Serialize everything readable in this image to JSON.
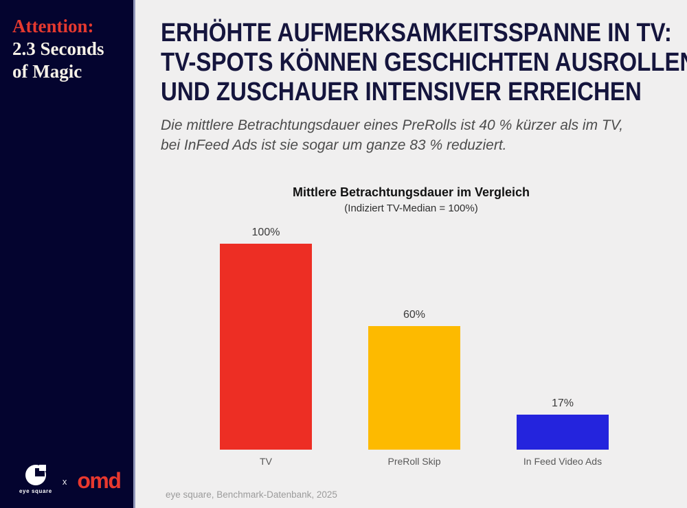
{
  "sidebar": {
    "tagline_accent": "Attention:",
    "tagline_rest": "2.3 Seconds of Magic",
    "eyesquare_label": "eye square",
    "separator": "x",
    "omd_label": "omd",
    "colors": {
      "background": "#04042f",
      "accent_red": "#e5392f",
      "cream": "#f6f1e7",
      "omd_red": "#e8382e"
    }
  },
  "main": {
    "title_lines": [
      "ERHÖHTE AUFMERKSAMKEITSSPANNE IN TV:",
      "TV-SPOTS KÖNNEN GESCHICHTEN AUSROLLEN",
      "UND ZUSCHAUER INTENSIVER ERREICHEN"
    ],
    "subtitle_lines": [
      "Die mittlere Betrachtungsdauer eines PreRolls ist 40 % kürzer als im TV,",
      "bei InFeed Ads ist sie sogar um ganze 83 % reduziert."
    ]
  },
  "chart_data": {
    "type": "bar",
    "title": "Mittlere Betrachtungsdauer im Vergleich",
    "subtitle": "(Indiziert TV-Median = 100%)",
    "categories": [
      "TV",
      "PreRoll Skip",
      "In Feed Video Ads"
    ],
    "values": [
      100,
      60,
      17
    ],
    "value_labels": [
      "100%",
      "60%",
      "17%"
    ],
    "bar_colors": [
      "#ed2e24",
      "#fdba00",
      "#2424dd"
    ],
    "ylim": [
      0,
      100
    ],
    "grid": false,
    "legend": false,
    "source": "eye square, Benchmark-Datenbank, 2025"
  }
}
